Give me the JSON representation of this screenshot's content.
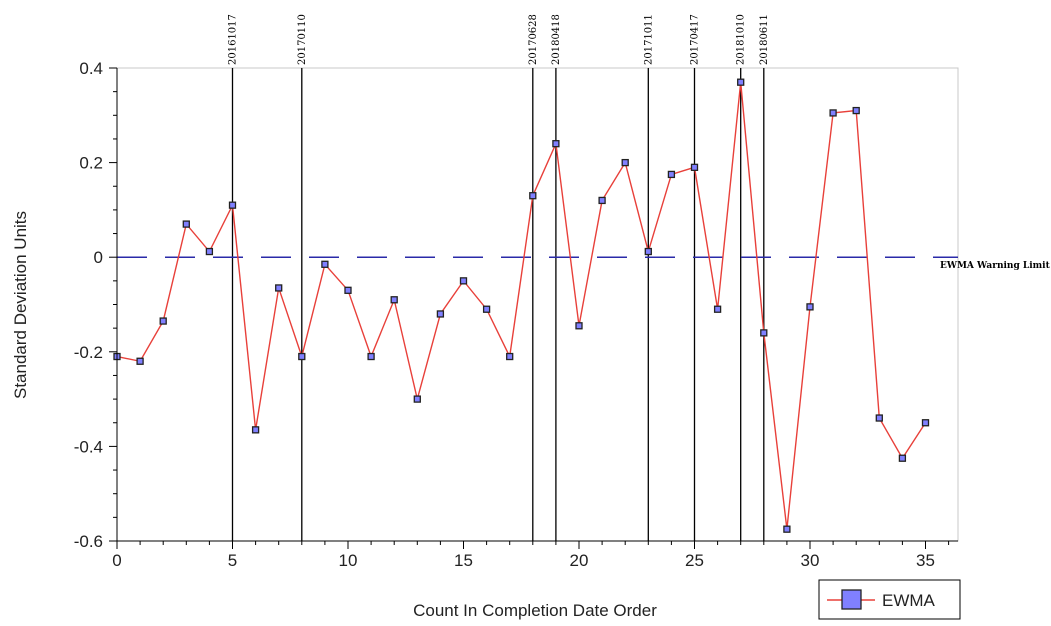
{
  "chart_data": {
    "type": "line",
    "xlabel": "Count In Completion Date Order",
    "ylabel": "Standard Deviation Units",
    "xlim": [
      0,
      36
    ],
    "ylim": [
      -0.6,
      0.4
    ],
    "x_ticks": [
      0,
      5,
      10,
      15,
      20,
      25,
      30,
      35
    ],
    "x_tick_labels": [
      "0",
      "5",
      "10",
      "15",
      "20",
      "25",
      "30",
      "35"
    ],
    "y_ticks": [
      0.4,
      0.2,
      0,
      -0.2,
      -0.4,
      -0.6
    ],
    "y_tick_labels": [
      "0.4",
      "0.2",
      "0",
      "-0.2",
      "-0.4",
      "-0.6"
    ],
    "grid": false,
    "legend_position": "bottom-right",
    "series": [
      {
        "name": "EWMA",
        "color": "#e8403a",
        "marker_fill": "#8080ff",
        "x": [
          0,
          1,
          2,
          3,
          4,
          5,
          6,
          7,
          8,
          9,
          10,
          11,
          12,
          13,
          14,
          15,
          16,
          17,
          18,
          19,
          20,
          21,
          22,
          23,
          24,
          25,
          26,
          27,
          28,
          29,
          30,
          31,
          32,
          33,
          34,
          35
        ],
        "y": [
          -0.21,
          -0.22,
          -0.135,
          0.07,
          0.012,
          0.11,
          -0.365,
          -0.065,
          -0.21,
          -0.015,
          -0.07,
          -0.21,
          -0.09,
          -0.3,
          -0.12,
          -0.05,
          -0.11,
          -0.21,
          0.13,
          0.24,
          -0.145,
          0.12,
          0.2,
          0.012,
          0.175,
          0.19,
          -0.11,
          0.37,
          -0.16,
          -0.575,
          -0.105,
          0.305,
          0.31,
          -0.34,
          -0.425,
          -0.35
        ]
      }
    ],
    "reference_line": {
      "label": "EWMA Warning Limit",
      "value": 0,
      "color": "#2a2aa8"
    },
    "markers": [
      {
        "x": 5,
        "label": "20161017"
      },
      {
        "x": 8,
        "label": "20170110"
      },
      {
        "x": 18,
        "label": "20170628"
      },
      {
        "x": 19,
        "label": "20180418"
      },
      {
        "x": 23,
        "label": "20171011"
      },
      {
        "x": 25,
        "label": "20170417"
      },
      {
        "x": 27,
        "label": "20181010"
      },
      {
        "x": 28,
        "label": "20180611"
      }
    ]
  }
}
